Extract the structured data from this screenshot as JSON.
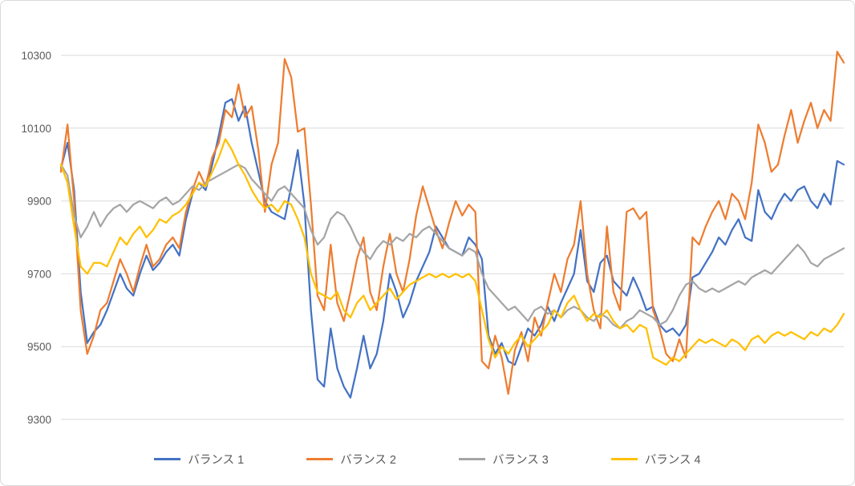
{
  "chart_data": {
    "type": "line",
    "title": "",
    "xlabel": "",
    "ylabel": "",
    "ylim": [
      9300,
      10300
    ],
    "yticks": [
      9300,
      9500,
      9700,
      9900,
      10100,
      10300
    ],
    "grid": "horizontal",
    "gridline_color": "#D9D9D9",
    "axis_label_color": "#595959",
    "legend_position": "bottom",
    "series": [
      {
        "name": "バランス 1",
        "color": "#4472C4",
        "values": [
          9990,
          10060,
          9930,
          9650,
          9510,
          9540,
          9560,
          9600,
          9650,
          9700,
          9660,
          9640,
          9700,
          9750,
          9710,
          9730,
          9760,
          9780,
          9750,
          9850,
          9920,
          9950,
          9930,
          10000,
          10080,
          10170,
          10180,
          10120,
          10160,
          10060,
          9980,
          9900,
          9870,
          9860,
          9850,
          9940,
          10040,
          9890,
          9600,
          9410,
          9390,
          9550,
          9440,
          9390,
          9360,
          9440,
          9530,
          9440,
          9480,
          9570,
          9700,
          9650,
          9580,
          9620,
          9680,
          9720,
          9760,
          9830,
          9800,
          9770,
          9760,
          9750,
          9800,
          9780,
          9740,
          9530,
          9480,
          9510,
          9460,
          9450,
          9500,
          9550,
          9530,
          9560,
          9610,
          9570,
          9620,
          9660,
          9700,
          9820,
          9680,
          9650,
          9730,
          9750,
          9680,
          9660,
          9640,
          9690,
          9650,
          9600,
          9610,
          9560,
          9540,
          9550,
          9530,
          9560,
          9690,
          9700,
          9730,
          9760,
          9800,
          9780,
          9820,
          9850,
          9800,
          9790,
          9930,
          9870,
          9850,
          9890,
          9920,
          9900,
          9930,
          9940,
          9900,
          9880,
          9920,
          9890,
          10010,
          10000
        ]
      },
      {
        "name": "バランス 2",
        "color": "#ED7D31",
        "values": [
          9980,
          10110,
          9900,
          9600,
          9480,
          9530,
          9600,
          9620,
          9680,
          9740,
          9700,
          9650,
          9720,
          9780,
          9720,
          9740,
          9780,
          9800,
          9770,
          9870,
          9930,
          9980,
          9940,
          10020,
          10060,
          10150,
          10130,
          10220,
          10130,
          10160,
          10040,
          9870,
          10000,
          10060,
          10290,
          10240,
          10090,
          10100,
          9890,
          9640,
          9600,
          9780,
          9620,
          9570,
          9650,
          9740,
          9800,
          9650,
          9600,
          9720,
          9810,
          9700,
          9650,
          9740,
          9860,
          9940,
          9880,
          9820,
          9770,
          9840,
          9900,
          9860,
          9890,
          9870,
          9460,
          9440,
          9530,
          9470,
          9370,
          9490,
          9540,
          9460,
          9580,
          9530,
          9620,
          9700,
          9650,
          9740,
          9780,
          9900,
          9700,
          9600,
          9550,
          9830,
          9650,
          9600,
          9870,
          9880,
          9850,
          9870,
          9600,
          9550,
          9480,
          9460,
          9520,
          9470,
          9800,
          9780,
          9830,
          9870,
          9900,
          9850,
          9920,
          9900,
          9850,
          9950,
          10110,
          10060,
          9980,
          10000,
          10080,
          10150,
          10060,
          10120,
          10170,
          10100,
          10150,
          10120,
          10310,
          10280
        ]
      },
      {
        "name": "バランス 3",
        "color": "#A5A5A5",
        "values": [
          10000,
          9970,
          9860,
          9800,
          9830,
          9870,
          9830,
          9860,
          9880,
          9890,
          9870,
          9890,
          9900,
          9890,
          9880,
          9900,
          9910,
          9890,
          9900,
          9920,
          9940,
          9930,
          9950,
          9960,
          9970,
          9980,
          9990,
          10000,
          9990,
          9960,
          9940,
          9920,
          9900,
          9930,
          9940,
          9920,
          9900,
          9880,
          9820,
          9780,
          9800,
          9850,
          9870,
          9860,
          9830,
          9790,
          9760,
          9740,
          9770,
          9790,
          9780,
          9800,
          9790,
          9810,
          9800,
          9820,
          9830,
          9810,
          9790,
          9770,
          9760,
          9750,
          9770,
          9760,
          9700,
          9660,
          9640,
          9620,
          9600,
          9610,
          9590,
          9570,
          9600,
          9610,
          9590,
          9600,
          9580,
          9600,
          9610,
          9600,
          9580,
          9570,
          9590,
          9580,
          9560,
          9550,
          9570,
          9580,
          9600,
          9590,
          9580,
          9560,
          9570,
          9600,
          9640,
          9670,
          9680,
          9660,
          9650,
          9660,
          9650,
          9660,
          9670,
          9680,
          9670,
          9690,
          9700,
          9710,
          9700,
          9720,
          9740,
          9760,
          9780,
          9760,
          9730,
          9720,
          9740,
          9750,
          9760,
          9770
        ]
      },
      {
        "name": "バランス 4",
        "color": "#FFC000",
        "values": [
          10000,
          9950,
          9830,
          9720,
          9700,
          9730,
          9730,
          9720,
          9760,
          9800,
          9780,
          9810,
          9830,
          9800,
          9820,
          9850,
          9840,
          9860,
          9870,
          9890,
          9920,
          9950,
          9940,
          9980,
          10020,
          10070,
          10040,
          10000,
          9970,
          9930,
          9900,
          9880,
          9890,
          9870,
          9900,
          9890,
          9850,
          9800,
          9700,
          9650,
          9640,
          9630,
          9650,
          9600,
          9580,
          9620,
          9640,
          9600,
          9620,
          9640,
          9660,
          9630,
          9650,
          9670,
          9680,
          9690,
          9700,
          9690,
          9700,
          9690,
          9700,
          9690,
          9700,
          9680,
          9600,
          9520,
          9470,
          9500,
          9480,
          9510,
          9530,
          9500,
          9520,
          9540,
          9560,
          9600,
          9580,
          9620,
          9640,
          9600,
          9570,
          9590,
          9580,
          9600,
          9570,
          9550,
          9560,
          9540,
          9560,
          9550,
          9470,
          9460,
          9450,
          9470,
          9460,
          9480,
          9500,
          9520,
          9510,
          9520,
          9510,
          9500,
          9520,
          9510,
          9490,
          9520,
          9530,
          9510,
          9530,
          9540,
          9530,
          9540,
          9530,
          9520,
          9540,
          9530,
          9550,
          9540,
          9560,
          9590
        ]
      }
    ]
  }
}
